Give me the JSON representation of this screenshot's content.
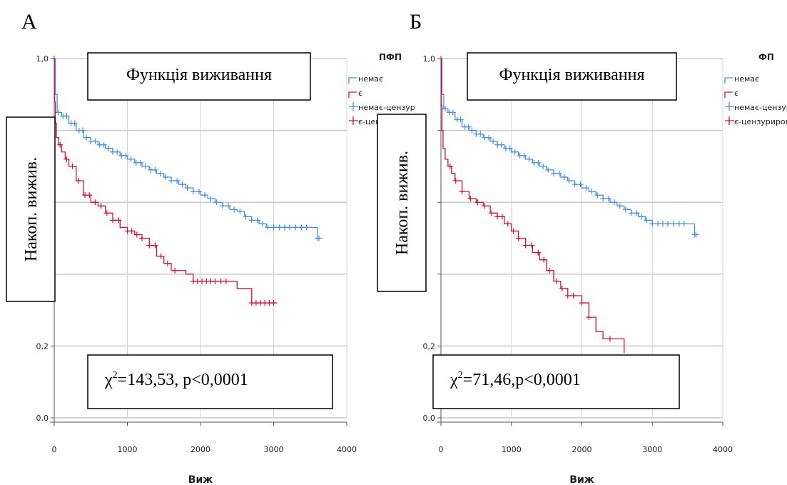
{
  "panels": [
    {
      "letter": "А",
      "overlay_title": "Функція виживання",
      "ylabel": "Накоп. вижив.",
      "stat": {
        "chi": "χ",
        "sup": "2",
        "text": "=143,53, p<0,0001"
      }
    },
    {
      "letter": "Б",
      "overlay_title": "Функція виживання",
      "ylabel": "Накоп. вижив.",
      "stat": {
        "chi": "χ",
        "sup": "2",
        "text": "=71,46,p<0,0001"
      }
    }
  ],
  "chart_data": [
    {
      "type": "line",
      "subtype": "kaplan-meier step",
      "legend_title": "ПФП",
      "xlabel": "Виж",
      "ylabel": "Накоп. вижив.",
      "xlim": [
        0,
        4000
      ],
      "ylim": [
        0,
        1
      ],
      "x_ticks": [
        0,
        1000,
        2000,
        3000,
        4000
      ],
      "x_tick_labels": [
        "0",
        "1000",
        "2000",
        "3000",
        "4000"
      ],
      "y_ticks": [
        0,
        0.2,
        0.4,
        0.6,
        0.8,
        1.0
      ],
      "y_tick_labels": [
        "0,0",
        "0,2",
        "",
        "",
        "",
        "1,0"
      ],
      "grid": true,
      "legend_position": "top-right",
      "legend": [
        {
          "label": "немає",
          "marker": "step",
          "color": "#4a8fe0"
        },
        {
          "label": "є",
          "marker": "step",
          "color": "#d0103a"
        },
        {
          "label": "немає-цензур",
          "marker": "plus",
          "color": "#4a8fe0"
        },
        {
          "label": "є-цензур",
          "marker": "plus",
          "color": "#d0103a"
        }
      ],
      "series": [
        {
          "name": "немає",
          "color": "#4a8fe0",
          "x": [
            0,
            15,
            40,
            100,
            200,
            300,
            400,
            500,
            600,
            700,
            800,
            900,
            1000,
            1100,
            1200,
            1300,
            1400,
            1500,
            1600,
            1700,
            1800,
            1900,
            2000,
            2100,
            2200,
            2300,
            2400,
            2500,
            2600,
            2700,
            2800,
            2900,
            3000,
            3100,
            3200,
            3300,
            3400,
            3500,
            3600,
            3610
          ],
          "y": [
            1.0,
            0.9,
            0.85,
            0.84,
            0.82,
            0.8,
            0.78,
            0.77,
            0.76,
            0.75,
            0.74,
            0.73,
            0.72,
            0.71,
            0.7,
            0.69,
            0.68,
            0.67,
            0.66,
            0.65,
            0.64,
            0.63,
            0.62,
            0.61,
            0.6,
            0.59,
            0.58,
            0.575,
            0.56,
            0.55,
            0.54,
            0.53,
            0.53,
            0.53,
            0.53,
            0.53,
            0.53,
            0.53,
            0.5,
            0.5
          ],
          "censored_x": [
            60,
            120,
            170,
            230,
            280,
            340,
            390,
            440,
            500,
            560,
            620,
            680,
            740,
            800,
            860,
            920,
            980,
            1050,
            1120,
            1180,
            1250,
            1320,
            1380,
            1450,
            1520,
            1600,
            1680,
            1750,
            1820,
            1900,
            1980,
            2060,
            2140,
            2220,
            2300,
            2380,
            2460,
            2540,
            2620,
            2700,
            2780,
            2850,
            2920,
            3000,
            3080,
            3150,
            3220,
            3300,
            3380,
            3450,
            3600,
            3620
          ]
        },
        {
          "name": "є",
          "color": "#d0103a",
          "x": [
            0,
            5,
            15,
            30,
            60,
            100,
            150,
            200,
            300,
            400,
            500,
            600,
            700,
            800,
            900,
            1000,
            1100,
            1200,
            1300,
            1400,
            1500,
            1600,
            1700,
            1800,
            1900,
            2000,
            2100,
            2200,
            2300,
            2400,
            2500,
            2600,
            2700,
            2800,
            2900,
            3000,
            3050
          ],
          "y": [
            1.0,
            0.88,
            0.82,
            0.78,
            0.76,
            0.74,
            0.72,
            0.7,
            0.66,
            0.62,
            0.6,
            0.59,
            0.57,
            0.55,
            0.53,
            0.52,
            0.51,
            0.5,
            0.48,
            0.45,
            0.43,
            0.41,
            0.41,
            0.4,
            0.38,
            0.38,
            0.38,
            0.38,
            0.38,
            0.38,
            0.36,
            0.36,
            0.32,
            0.32,
            0.32,
            0.32,
            0.32
          ],
          "censored_x": [
            80,
            170,
            250,
            330,
            420,
            480,
            560,
            640,
            720,
            800,
            880,
            1000,
            1060,
            1130,
            1200,
            1300,
            1380,
            1460,
            1550,
            1650,
            1900,
            1960,
            2020,
            2080,
            2140,
            2200,
            2280,
            2350,
            2700,
            2760,
            2820,
            2880,
            2940,
            3000
          ]
        }
      ]
    },
    {
      "type": "line",
      "subtype": "kaplan-meier step",
      "legend_title": "ФП",
      "xlabel": "Виж",
      "ylabel": "Накоп. вижив.",
      "xlim": [
        0,
        4000
      ],
      "ylim": [
        0,
        1
      ],
      "x_ticks": [
        0,
        1000,
        2000,
        3000,
        4000
      ],
      "x_tick_labels": [
        "0",
        "1000",
        "2000",
        "3000",
        "4000"
      ],
      "y_ticks": [
        0,
        0.2,
        0.4,
        0.6,
        0.8,
        1.0
      ],
      "y_tick_labels": [
        "0,0",
        "0,2",
        "",
        "",
        "",
        "1,0"
      ],
      "grid": true,
      "legend_position": "top-right",
      "legend": [
        {
          "label": "немає",
          "marker": "step",
          "color": "#4a8fe0"
        },
        {
          "label": "є",
          "marker": "step",
          "color": "#d0103a"
        },
        {
          "label": "немає-цензур",
          "marker": "plus",
          "color": "#4a8fe0"
        },
        {
          "label": "є-цензуриров",
          "marker": "plus",
          "color": "#d0103a"
        }
      ],
      "series": [
        {
          "name": "немає",
          "color": "#4a8fe0",
          "x": [
            0,
            15,
            40,
            100,
            200,
            300,
            400,
            500,
            600,
            700,
            800,
            900,
            1000,
            1100,
            1200,
            1300,
            1400,
            1500,
            1600,
            1700,
            1800,
            1900,
            2000,
            2100,
            2200,
            2300,
            2400,
            2500,
            2600,
            2700,
            2800,
            2900,
            3000,
            3100,
            3200,
            3300,
            3400,
            3500,
            3600,
            3610
          ],
          "y": [
            1.0,
            0.9,
            0.86,
            0.85,
            0.83,
            0.81,
            0.8,
            0.79,
            0.78,
            0.77,
            0.76,
            0.75,
            0.74,
            0.73,
            0.72,
            0.71,
            0.7,
            0.69,
            0.68,
            0.67,
            0.66,
            0.65,
            0.64,
            0.63,
            0.62,
            0.61,
            0.6,
            0.59,
            0.58,
            0.57,
            0.56,
            0.55,
            0.54,
            0.54,
            0.54,
            0.54,
            0.54,
            0.54,
            0.51,
            0.51
          ],
          "censored_x": [
            60,
            120,
            170,
            230,
            280,
            340,
            390,
            440,
            500,
            560,
            620,
            680,
            740,
            800,
            860,
            920,
            980,
            1050,
            1120,
            1180,
            1250,
            1320,
            1380,
            1450,
            1520,
            1600,
            1680,
            1750,
            1820,
            1900,
            1980,
            2060,
            2140,
            2220,
            2300,
            2380,
            2460,
            2540,
            2620,
            2700,
            2780,
            2850,
            2920,
            3000,
            3080,
            3150,
            3220,
            3300,
            3380,
            3450,
            3600,
            3620
          ]
        },
        {
          "name": "є",
          "color": "#d0103a",
          "x": [
            0,
            5,
            15,
            30,
            60,
            100,
            150,
            200,
            300,
            400,
            500,
            600,
            700,
            800,
            900,
            1000,
            1100,
            1200,
            1300,
            1400,
            1500,
            1600,
            1700,
            1800,
            1900,
            2000,
            2100,
            2200,
            2300,
            2400,
            2500,
            2600
          ],
          "y": [
            1.0,
            0.87,
            0.8,
            0.75,
            0.72,
            0.7,
            0.68,
            0.66,
            0.63,
            0.61,
            0.6,
            0.59,
            0.57,
            0.56,
            0.54,
            0.52,
            0.5,
            0.48,
            0.46,
            0.44,
            0.41,
            0.38,
            0.36,
            0.34,
            0.34,
            0.32,
            0.28,
            0.24,
            0.22,
            0.22,
            0.22,
            0.18
          ],
          "censored_x": [
            130,
            210,
            300,
            420,
            520,
            620,
            720,
            800,
            870,
            950,
            1030,
            1100,
            1200,
            1290,
            1380,
            1460,
            1540,
            1640,
            1720,
            1800,
            1880,
            2000,
            2100,
            2400
          ]
        }
      ]
    }
  ]
}
